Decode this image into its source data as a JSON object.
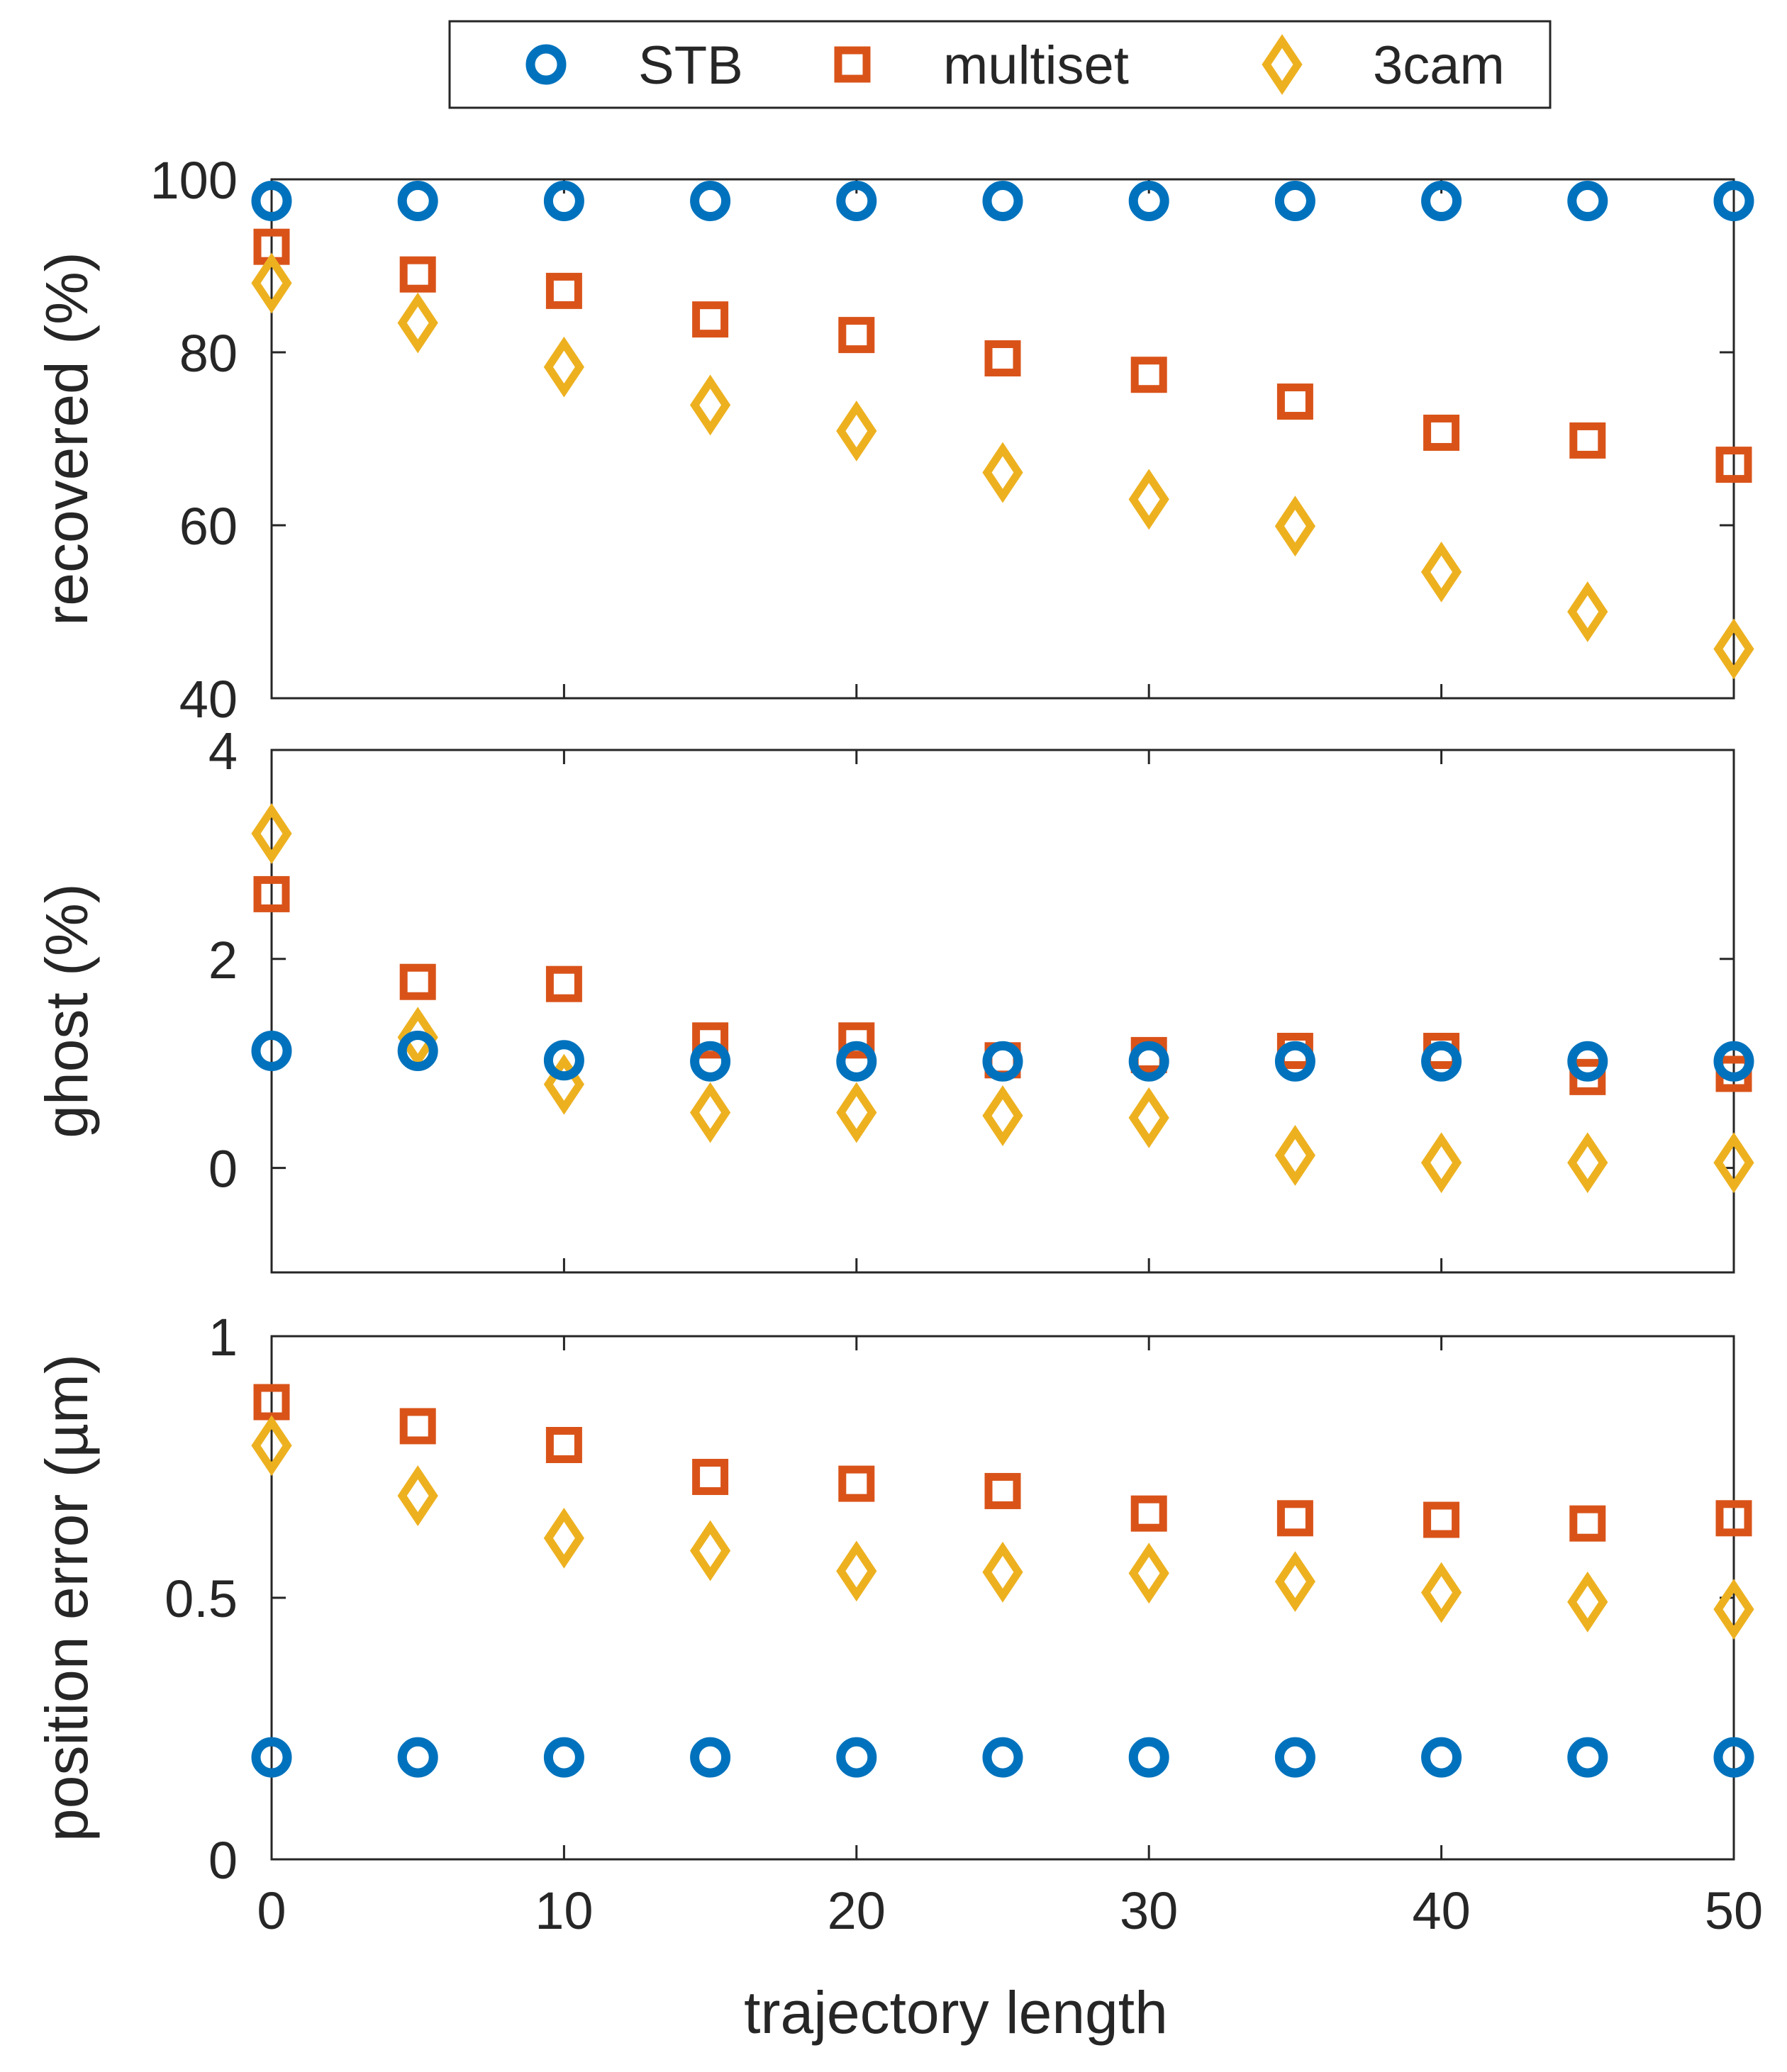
{
  "legend": {
    "placement": "top-center",
    "entries": [
      {
        "name": "STB",
        "marker": "circle",
        "color": "#0072BD"
      },
      {
        "name": "multiset",
        "marker": "square",
        "color": "#D95319"
      },
      {
        "name": "3cam",
        "marker": "diamond",
        "color": "#EDB120"
      }
    ]
  },
  "chart_data": [
    {
      "type": "scatter",
      "title": "",
      "xlabel": "",
      "ylabel": "recovered (%)",
      "xlim": [
        0,
        50
      ],
      "ylim": [
        40,
        100
      ],
      "xticks": [
        0,
        10,
        20,
        30,
        40,
        50
      ],
      "xtick_labels_shown": false,
      "yticks": [
        40,
        60,
        80,
        100
      ],
      "ytick_labels": [
        "40",
        "60",
        "80",
        "100"
      ],
      "x": [
        0,
        5,
        10,
        15,
        20,
        25,
        30,
        35,
        40,
        45,
        50
      ],
      "series": [
        {
          "name": "STB",
          "values": [
            97.5,
            97.5,
            97.5,
            97.5,
            97.5,
            97.5,
            97.5,
            97.5,
            97.5,
            97.5,
            97.5
          ]
        },
        {
          "name": "multiset",
          "values": [
            92.2,
            89.0,
            87.1,
            83.8,
            82.0,
            79.3,
            77.4,
            74.3,
            70.7,
            69.8,
            67.0
          ]
        },
        {
          "name": "3cam",
          "values": [
            88.0,
            83.4,
            78.3,
            73.9,
            70.9,
            66.1,
            63.0,
            59.9,
            54.6,
            50.0,
            45.7
          ]
        }
      ]
    },
    {
      "type": "scatter",
      "title": "",
      "xlabel": "",
      "ylabel": "ghost (%)",
      "xlim": [
        0,
        50
      ],
      "ylim": [
        -1,
        4
      ],
      "xticks": [
        0,
        10,
        20,
        30,
        40,
        50
      ],
      "xtick_labels_shown": false,
      "yticks": [
        0,
        2,
        4
      ],
      "ytick_labels": [
        "0",
        "2",
        "4"
      ],
      "x": [
        0,
        5,
        10,
        15,
        20,
        25,
        30,
        35,
        40,
        45,
        50
      ],
      "series": [
        {
          "name": "STB",
          "values": [
            1.12,
            1.12,
            1.03,
            1.02,
            1.02,
            1.02,
            1.02,
            1.02,
            1.02,
            1.02,
            1.02
          ]
        },
        {
          "name": "multiset",
          "values": [
            2.62,
            1.78,
            1.76,
            1.22,
            1.22,
            1.03,
            1.08,
            1.12,
            1.12,
            0.87,
            0.9
          ]
        },
        {
          "name": "3cam",
          "values": [
            3.2,
            1.25,
            0.8,
            0.53,
            0.53,
            0.5,
            0.48,
            0.12,
            0.05,
            0.05,
            0.05
          ]
        }
      ]
    },
    {
      "type": "scatter",
      "title": "",
      "xlabel": "trajectory length",
      "ylabel": "position error (µm)",
      "xlim": [
        0,
        50
      ],
      "ylim": [
        0,
        1
      ],
      "xticks": [
        0,
        10,
        20,
        30,
        40,
        50
      ],
      "xtick_labels_shown": true,
      "xtick_labels": [
        "0",
        "10",
        "20",
        "30",
        "40",
        "50"
      ],
      "yticks": [
        0,
        0.5,
        1
      ],
      "ytick_labels": [
        "0",
        "0.5",
        "1"
      ],
      "x": [
        0,
        5,
        10,
        15,
        20,
        25,
        30,
        35,
        40,
        45,
        50
      ],
      "series": [
        {
          "name": "STB",
          "values": [
            0.195,
            0.195,
            0.195,
            0.195,
            0.195,
            0.195,
            0.195,
            0.195,
            0.195,
            0.195,
            0.195
          ]
        },
        {
          "name": "multiset",
          "values": [
            0.874,
            0.828,
            0.792,
            0.731,
            0.718,
            0.704,
            0.661,
            0.652,
            0.649,
            0.642,
            0.652
          ]
        },
        {
          "name": "3cam",
          "values": [
            0.791,
            0.695,
            0.614,
            0.59,
            0.551,
            0.549,
            0.547,
            0.531,
            0.51,
            0.492,
            0.478
          ]
        }
      ]
    }
  ]
}
